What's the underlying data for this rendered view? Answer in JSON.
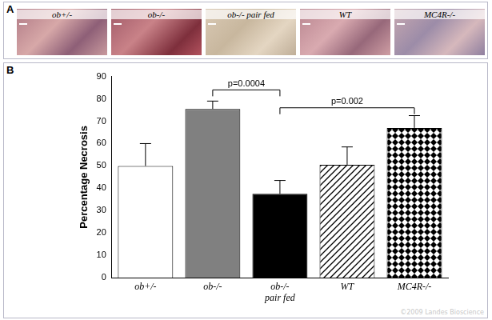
{
  "panel_a": {
    "label": "A",
    "images": [
      "ob+/-",
      "ob-/-",
      "ob-/- pair fed",
      "WT",
      "MC4R-/-"
    ]
  },
  "panel_b": {
    "label": "B"
  },
  "chart_data": {
    "type": "bar",
    "y_label": "Percentage Necrosis",
    "categories": [
      "ob+/-",
      "ob-/-",
      [
        "ob-/-",
        "pair fed"
      ],
      "WT",
      "MC4R-/-"
    ],
    "values": [
      50,
      75.5,
      37.5,
      50.5,
      67
    ],
    "errors": [
      10,
      3.5,
      6,
      8,
      5.5
    ],
    "colors": [
      "#ffffff",
      "#808080",
      "#000000",
      "#ffffff",
      "#ffffff"
    ],
    "ylim": [
      0,
      90
    ],
    "yticks": [
      0,
      10,
      20,
      30,
      40,
      50,
      60,
      70,
      80,
      90
    ],
    "grid": false,
    "annotations": [
      {
        "text": "p=0.0004",
        "from": 1,
        "to": 2,
        "y": 84
      },
      {
        "text": "p=0.002",
        "from": 2,
        "to": 4,
        "y": 76
      }
    ],
    "watermark": "©2009 Landes Bioscience"
  }
}
